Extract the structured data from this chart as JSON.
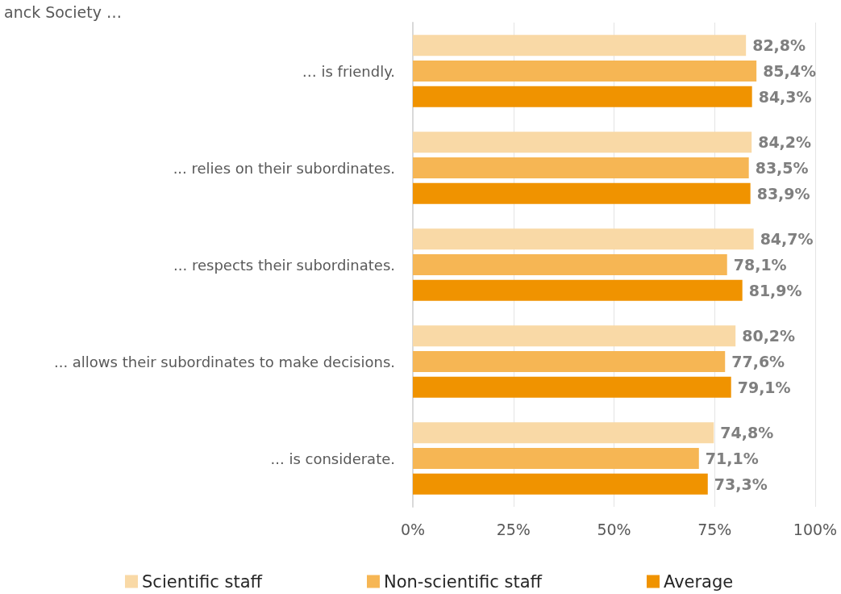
{
  "chart_data": {
    "type": "bar",
    "orientation": "horizontal",
    "title": "anck Society …",
    "categories": [
      "… is friendly.",
      "... relies on their subordinates.",
      "... respects their subordinates.",
      "... allows their subordinates to make decisions.",
      "... is considerate."
    ],
    "series": [
      {
        "name": "Scientific staff",
        "color": "#f9d9a6",
        "values": [
          82.8,
          84.2,
          84.7,
          80.2,
          74.8
        ],
        "value_labels": [
          "82,8%",
          "84,2%",
          "84,7%",
          "80,2%",
          "74,8%"
        ]
      },
      {
        "name": "Non-scientific staff",
        "color": "#f6b654",
        "values": [
          85.4,
          83.5,
          78.1,
          77.6,
          71.1
        ],
        "value_labels": [
          "85,4%",
          "83,5%",
          "78,1%",
          "77,6%",
          "71,1%"
        ]
      },
      {
        "name": "Average",
        "color": "#f09300",
        "values": [
          84.3,
          83.9,
          81.9,
          79.1,
          73.3
        ],
        "value_labels": [
          "84,3%",
          "83,9%",
          "81,9%",
          "79,1%",
          "73,3%"
        ]
      }
    ],
    "xlim": [
      0,
      100
    ],
    "xticks": [
      {
        "value": 0,
        "label": "0%"
      },
      {
        "value": 25,
        "label": "25%"
      },
      {
        "value": 50,
        "label": "50%"
      },
      {
        "value": 75,
        "label": "75%"
      },
      {
        "value": 100,
        "label": "100%"
      }
    ],
    "grid": "x",
    "legend": "bottom"
  }
}
